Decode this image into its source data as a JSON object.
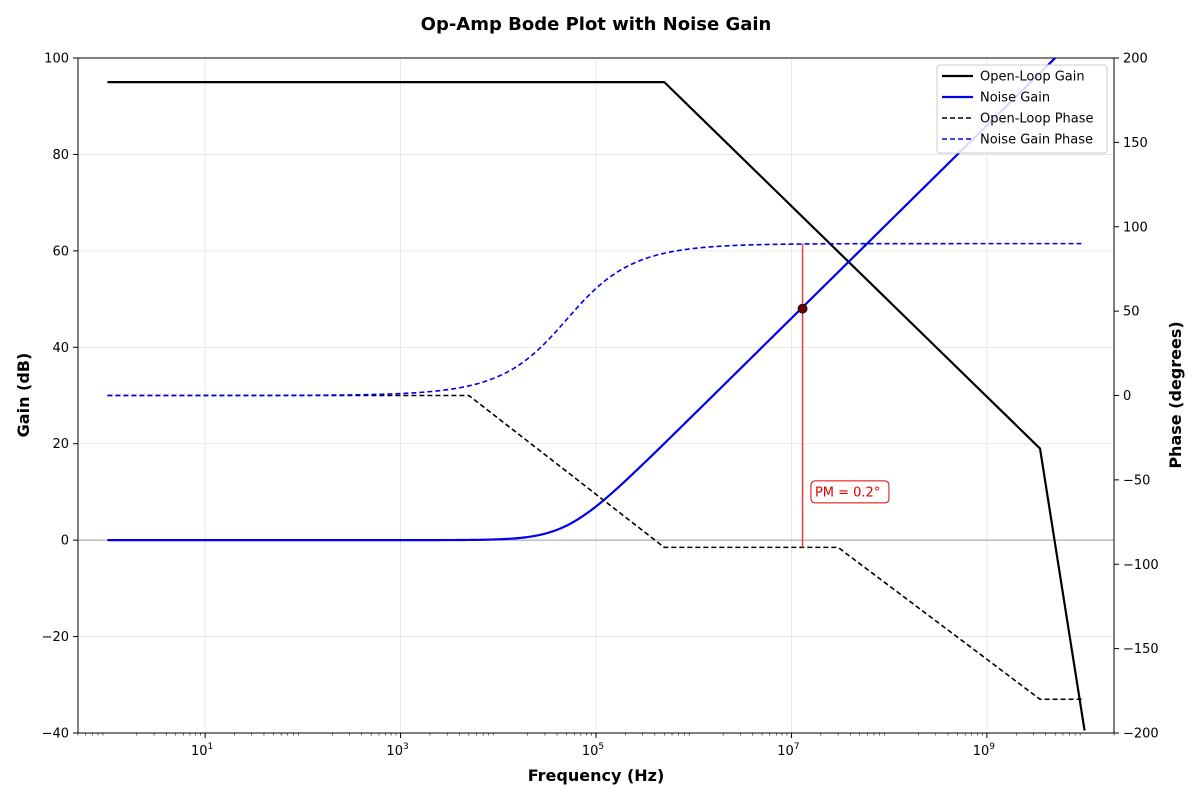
{
  "chart_data": {
    "type": "line",
    "title": "Op-Amp Bode Plot with Noise Gain",
    "xlabel": "Frequency (Hz)",
    "ylabel": "Gain (dB)",
    "y2label": "Phase (degrees)",
    "x_scale": "log",
    "xlim": [
      0.5,
      20000000000
    ],
    "ylim": [
      -40,
      100
    ],
    "y2lim": [
      -200,
      200
    ],
    "x_ticks": [
      {
        "value": 10,
        "base": "10",
        "exp": "1"
      },
      {
        "value": 1000,
        "base": "10",
        "exp": "3"
      },
      {
        "value": 100000,
        "base": "10",
        "exp": "5"
      },
      {
        "value": 10000000,
        "base": "10",
        "exp": "7"
      },
      {
        "value": 1000000000,
        "base": "10",
        "exp": "9"
      }
    ],
    "y_ticks": [
      {
        "value": 100,
        "label": "100"
      },
      {
        "value": 80,
        "label": "80"
      },
      {
        "value": 60,
        "label": "60"
      },
      {
        "value": 40,
        "label": "40"
      },
      {
        "value": 20,
        "label": "20"
      },
      {
        "value": 0,
        "label": "0"
      },
      {
        "value": -20,
        "label": "−20"
      },
      {
        "value": -40,
        "label": "−40"
      }
    ],
    "y2_ticks": [
      {
        "value": 200,
        "label": "200"
      },
      {
        "value": 150,
        "label": "150"
      },
      {
        "value": 100,
        "label": "100"
      },
      {
        "value": 50,
        "label": "50"
      },
      {
        "value": 0,
        "label": "0"
      },
      {
        "value": -50,
        "label": "−50"
      },
      {
        "value": -100,
        "label": "−100"
      },
      {
        "value": -150,
        "label": "−150"
      },
      {
        "value": -200,
        "label": "−200"
      }
    ],
    "grid": true,
    "legend_position": "top-right",
    "series": [
      {
        "name": "Open-Loop Gain",
        "axis": "left",
        "style": "solid",
        "color": "#000000",
        "x": [
          1,
          500000,
          3500000000,
          10000000000
        ],
        "y": [
          95,
          95,
          19,
          -39.5
        ]
      },
      {
        "name": "Noise Gain",
        "axis": "left",
        "style": "solid",
        "color": "#0000ee",
        "model": "noise_gain",
        "zero_hz": 50000,
        "x_range": [
          1,
          10000000000
        ],
        "ymax": 100
      },
      {
        "name": "Open-Loop Phase",
        "axis": "right",
        "style": "dashed",
        "color": "#000000",
        "x": [
          1,
          5000,
          500000,
          30000000,
          3500000000,
          10000000000
        ],
        "y": [
          0,
          0,
          -90,
          -90,
          -180,
          -180
        ]
      },
      {
        "name": "Noise Gain Phase",
        "axis": "right",
        "style": "dashed",
        "color": "#0000ee",
        "model": "noise_phase",
        "zero_hz": 50000,
        "x_range": [
          1,
          10000000000
        ]
      }
    ],
    "crossover": {
      "x": 13000000,
      "gain_db": 48,
      "phase_top": 90,
      "phase_bottom": -90
    },
    "annotation": {
      "text": "PM = 0.2°",
      "x": 17000000,
      "y": 10,
      "color": "#dd0000"
    }
  }
}
